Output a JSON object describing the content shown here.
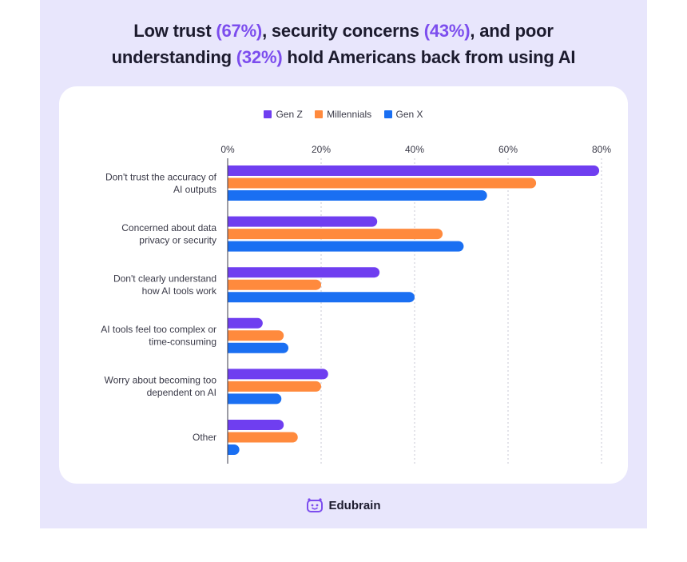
{
  "headline": {
    "line1_a": "Low trust ",
    "line1_b": "(67%)",
    "line1_c": ", security concerns ",
    "line1_d": "(43%)",
    "line1_e": ", and poor",
    "line2_a": "understanding ",
    "line2_b": "(32%)",
    "line2_c": " hold Americans back from using AI"
  },
  "colors": {
    "background": "#e8e6fc",
    "highlight": "#7c4dee",
    "gen_z": "#6f3ef0",
    "millennials": "#ff8a3d",
    "gen_x": "#1a6ff2",
    "brand": "#7c4dee"
  },
  "brand": {
    "name": "Edubrain",
    "icon": "robot-face-icon"
  },
  "chart_data": {
    "type": "bar",
    "orientation": "horizontal",
    "title": "",
    "xlabel": "",
    "ylabel": "",
    "xlim": [
      0,
      80
    ],
    "x_ticks": [
      "0%",
      "20%",
      "40%",
      "60%",
      "80%"
    ],
    "x_tick_values": [
      0,
      20,
      40,
      60,
      80
    ],
    "grid": "vertical-dashed",
    "legend_position": "top-center",
    "categories": [
      [
        "Don't trust the accuracy of",
        "AI outputs"
      ],
      [
        "Concerned about data",
        "privacy or security"
      ],
      [
        "Don't clearly understand",
        "how AI tools work"
      ],
      [
        "AI tools feel too complex or",
        "time-consuming"
      ],
      [
        "Worry about becoming too",
        "dependent on AI"
      ],
      [
        "Other"
      ]
    ],
    "series": [
      {
        "name": "Gen Z",
        "color": "#6f3ef0",
        "values": [
          79.5,
          32,
          32.5,
          7.5,
          21.5,
          12
        ]
      },
      {
        "name": "Millennials",
        "color": "#ff8a3d",
        "values": [
          66,
          46,
          20,
          12,
          20,
          15
        ]
      },
      {
        "name": "Gen X",
        "color": "#1a6ff2",
        "values": [
          55.5,
          50.5,
          40,
          13,
          11.5,
          2.5
        ]
      }
    ]
  }
}
